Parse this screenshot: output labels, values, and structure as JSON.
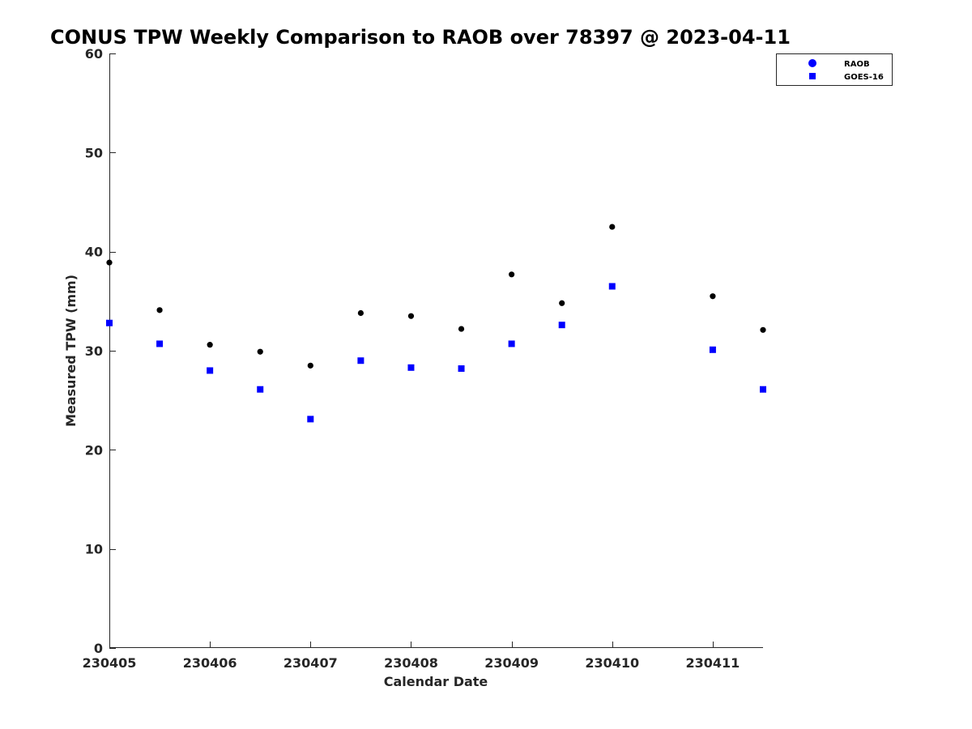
{
  "chart_data": {
    "type": "scatter",
    "title": "CONUS TPW Weekly Comparison to RAOB over 78397 @ 2023-04-11",
    "xlabel": "Calendar Date",
    "ylabel": "Measured TPW (mm)",
    "xlim": [
      230405,
      230411.5
    ],
    "ylim": [
      0,
      60
    ],
    "xticks": [
      230405,
      230406,
      230407,
      230408,
      230409,
      230410,
      230411
    ],
    "xtick_labels": [
      "230405",
      "230406",
      "230407",
      "230408",
      "230409",
      "230410",
      "230411"
    ],
    "yticks": [
      0,
      10,
      20,
      30,
      40,
      50,
      60
    ],
    "ytick_labels": [
      "0",
      "10",
      "20",
      "30",
      "40",
      "50",
      "60"
    ],
    "grid": false,
    "legend_position": "top-right",
    "series": [
      {
        "name": "RAOB",
        "marker": "circle",
        "color": "#000000",
        "legend_color": "#0000ff",
        "x": [
          230405,
          230405.5,
          230406,
          230406.5,
          230407,
          230407.5,
          230408,
          230408.5,
          230409,
          230409.5,
          230410,
          230411,
          230411.5
        ],
        "y": [
          38.9,
          34.1,
          30.6,
          29.9,
          28.5,
          33.8,
          33.5,
          32.2,
          37.7,
          34.8,
          42.5,
          35.5,
          32.1
        ]
      },
      {
        "name": "GOES-16",
        "marker": "square",
        "color": "#0000ff",
        "legend_color": "#0000ff",
        "x": [
          230405,
          230405.5,
          230406,
          230406.5,
          230407,
          230407.5,
          230408,
          230408.5,
          230409,
          230409.5,
          230410,
          230411,
          230411.5
        ],
        "y": [
          32.8,
          30.7,
          28.0,
          26.1,
          23.1,
          29.0,
          28.3,
          28.2,
          30.7,
          32.6,
          36.5,
          30.1,
          26.1
        ]
      }
    ]
  }
}
